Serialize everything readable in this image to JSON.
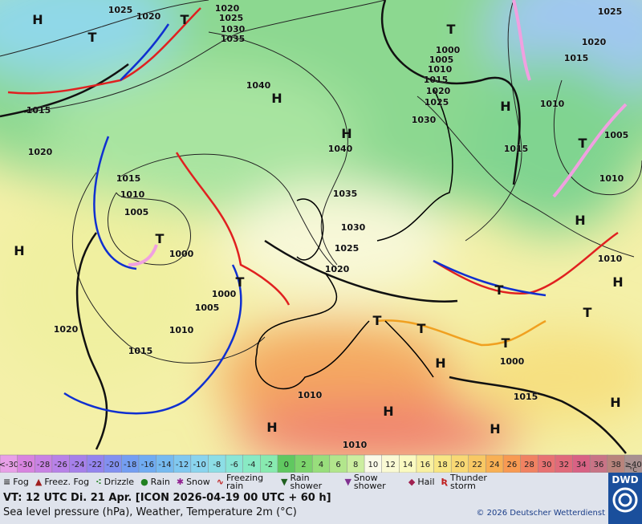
{
  "pressure_labels": [
    1025,
    1020,
    1020,
    1025,
    1030,
    1035,
    1025,
    1020,
    1015,
    1000,
    1005,
    1010,
    1015,
    1020,
    1025,
    1030,
    1040,
    1040,
    1035,
    1030,
    1025,
    1020,
    1015,
    1020,
    1015,
    1010,
    1005,
    1000,
    1000,
    1005,
    1010,
    1020,
    1015,
    1010,
    1015,
    1005,
    1010,
    1010,
    1010,
    1010,
    1015,
    1000
  ],
  "pressure_centers": [
    "H",
    "H",
    "H",
    "H",
    "H",
    "H",
    "H",
    "H",
    "H",
    "H",
    "H",
    "H",
    "T",
    "T",
    "T",
    "T",
    "T",
    "T",
    "T",
    "T",
    "T",
    "T",
    "T"
  ],
  "temperature_scale": {
    "labels": [
      "<-30",
      "-30",
      "-28",
      "-26",
      "-24",
      "-22",
      "-20",
      "-18",
      "-16",
      "-14",
      "-12",
      "-10",
      "-8",
      "-6",
      "-4",
      "-2",
      "0",
      "2",
      "4",
      "6",
      "8",
      "10",
      "12",
      "14",
      "16",
      "18",
      "20",
      "22",
      "24",
      "26",
      "28",
      "30",
      "32",
      "34",
      "36",
      "38",
      "≥40"
    ],
    "unit": "°C",
    "colors": [
      "#e8a0e8",
      "#d884e0",
      "#c882e4",
      "#b882e8",
      "#a680ea",
      "#9484ee",
      "#8290f0",
      "#749ef2",
      "#70acf2",
      "#76baf0",
      "#80c8f0",
      "#8ad4ee",
      "#8cdee6",
      "#8ae6d6",
      "#88eac4",
      "#88eab0",
      "#60c860",
      "#7cd46c",
      "#98de7c",
      "#b2e68c",
      "#cceea0",
      "#fafae8",
      "#fafad4",
      "#fafac0",
      "#f8f0a2",
      "#f8e684",
      "#f8d874",
      "#f8c864",
      "#f8b054",
      "#f89a52",
      "#f08262",
      "#e87272",
      "#e06a7a",
      "#d86284",
      "#c87486",
      "#b8847c",
      "#a89090"
    ]
  },
  "legend": [
    "Fog",
    "Freez. Fog",
    "Drizzle",
    "Rain",
    "Snow",
    "Freezing rain",
    "Rain shower",
    "Snow shower",
    "Hail",
    "Thunder storm"
  ],
  "footer": {
    "valid_time": "VT: 12 UTC Di.  21 Apr. [ICON 2026-04-19  00 UTC + 60 h]",
    "description": "Sea level pressure (hPa), Weather, Temperature 2m (°C)",
    "copyright": "© 2026 Deutscher Wetterdienst",
    "logo": "DWD"
  }
}
